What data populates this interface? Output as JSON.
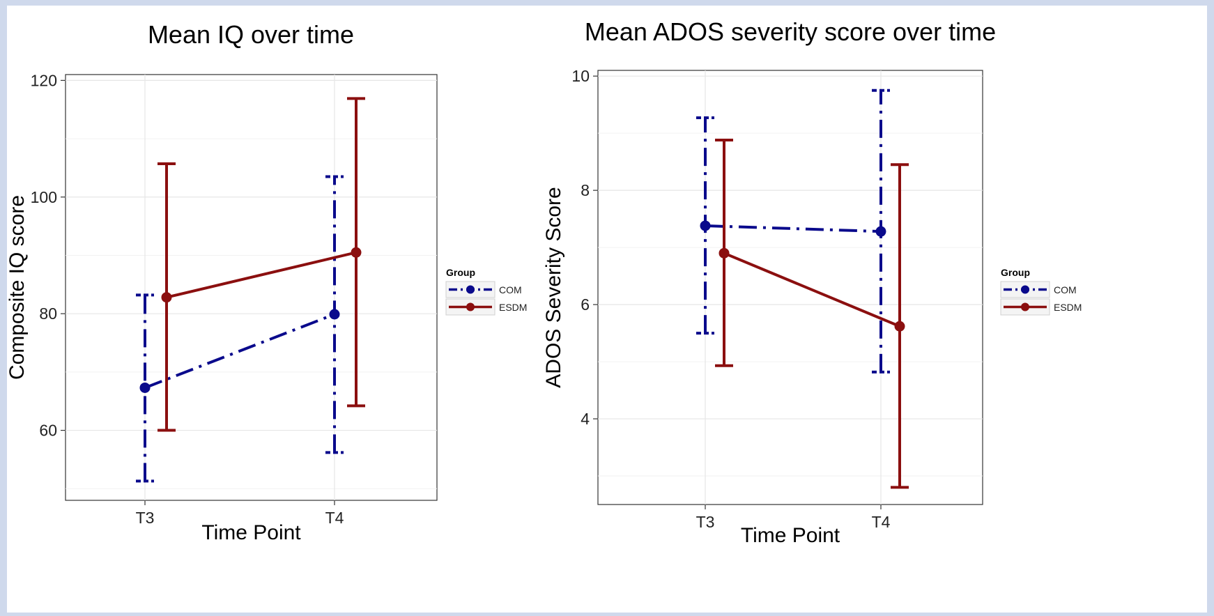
{
  "colors": {
    "COM": "#0a0a8c",
    "ESDM": "#8b0f0f"
  },
  "chart_data": [
    {
      "type": "line",
      "title": "Mean IQ over time",
      "xlabel": "Time Point",
      "ylabel": "Composite IQ score",
      "categories": [
        "T3",
        "T4"
      ],
      "ylim": [
        48,
        121
      ],
      "yticks": [
        60,
        80,
        100,
        120
      ],
      "grid": true,
      "legend": {
        "title": "Group",
        "placement": "right"
      },
      "series": [
        {
          "name": "COM",
          "style": "dash-dot",
          "values": [
            67.3,
            79.9
          ],
          "lower": [
            51.3,
            56.2
          ],
          "upper": [
            83.2,
            103.5
          ]
        },
        {
          "name": "ESDM",
          "style": "solid",
          "values": [
            82.8,
            90.5
          ],
          "lower": [
            60.0,
            64.2
          ],
          "upper": [
            105.7,
            116.9
          ]
        }
      ]
    },
    {
      "type": "line",
      "title": "Mean ADOS severity score over time",
      "xlabel": "Time Point",
      "ylabel": "ADOS Severity Score",
      "categories": [
        "T3",
        "T4"
      ],
      "ylim": [
        2.5,
        10.1
      ],
      "yticks": [
        4,
        6,
        8,
        10
      ],
      "grid": true,
      "legend": {
        "title": "Group",
        "placement": "right"
      },
      "series": [
        {
          "name": "COM",
          "style": "dash-dot",
          "values": [
            7.38,
            7.28
          ],
          "lower": [
            5.5,
            4.82
          ],
          "upper": [
            9.27,
            9.75
          ]
        },
        {
          "name": "ESDM",
          "style": "solid",
          "values": [
            6.9,
            5.62
          ],
          "lower": [
            4.93,
            2.8
          ],
          "upper": [
            8.88,
            8.45
          ]
        }
      ]
    }
  ]
}
